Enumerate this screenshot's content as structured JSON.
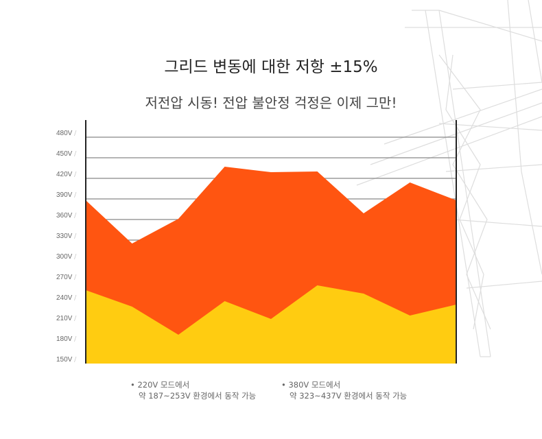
{
  "header": {
    "title": "그리드 변동에 대한 저항 ±15%",
    "subtitle": "저전압 시동! 전압 불안정 걱정은 이제 그만!"
  },
  "notes": [
    {
      "bullet": "•",
      "mode": "220V 모드에서",
      "range": "약 187~253V 환경에서 동작 가능"
    },
    {
      "bullet": "•",
      "mode": "380V 모드에서",
      "range": "약 323~437V 환경에서 동작 가능"
    }
  ],
  "chart_data": {
    "type": "area",
    "title": "",
    "xlabel": "",
    "ylabel": "",
    "ylim": [
      150,
      480
    ],
    "yticks": [
      "480V",
      "450V",
      "420V",
      "390V",
      "360V",
      "330V",
      "300V",
      "270V",
      "240V",
      "210V",
      "180V",
      "150V"
    ],
    "ytick_values": [
      480,
      450,
      420,
      390,
      360,
      330,
      300,
      270,
      240,
      210,
      180,
      150
    ],
    "x": [
      1,
      2,
      3,
      4,
      5,
      6,
      7,
      8,
      9
    ],
    "grid": true,
    "series": [
      {
        "name": "380V 모드",
        "color": "#ff5511",
        "values": [
          388,
          325,
          361,
          437,
          429,
          430,
          369,
          414,
          388
        ]
      },
      {
        "name": "220V 모드",
        "color": "#ffcc11",
        "values": [
          257,
          233,
          192,
          241,
          215,
          264,
          252,
          220,
          236
        ]
      }
    ]
  }
}
